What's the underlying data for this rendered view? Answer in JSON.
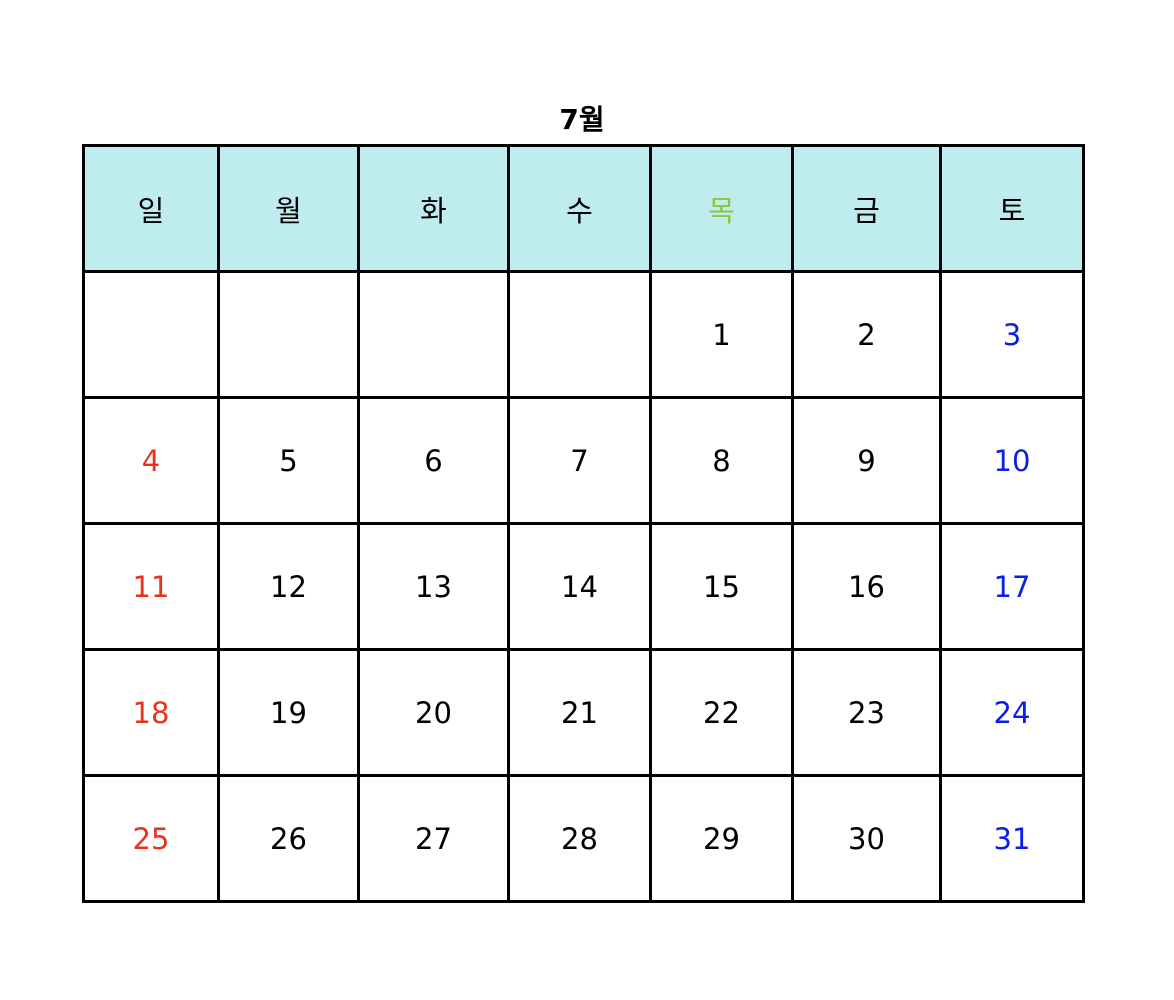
{
  "title": "7월",
  "colors": {
    "header_bg": "#bfecee",
    "sunday": "#e8321e",
    "saturday": "#0a1ee6",
    "thursday_header": "#8cc63f",
    "default": "#000000"
  },
  "weekdays": [
    {
      "label": "일",
      "color": "#000000"
    },
    {
      "label": "월",
      "color": "#000000"
    },
    {
      "label": "화",
      "color": "#000000"
    },
    {
      "label": "수",
      "color": "#000000"
    },
    {
      "label": "목",
      "color": "#8cc63f"
    },
    {
      "label": "금",
      "color": "#000000"
    },
    {
      "label": "토",
      "color": "#000000"
    }
  ],
  "weeks": [
    [
      "",
      "",
      "",
      "",
      "1",
      "2",
      "3"
    ],
    [
      "4",
      "5",
      "6",
      "7",
      "8",
      "9",
      "10"
    ],
    [
      "11",
      "12",
      "13",
      "14",
      "15",
      "16",
      "17"
    ],
    [
      "18",
      "19",
      "20",
      "21",
      "22",
      "23",
      "24"
    ],
    [
      "25",
      "26",
      "27",
      "28",
      "29",
      "30",
      "31"
    ]
  ]
}
